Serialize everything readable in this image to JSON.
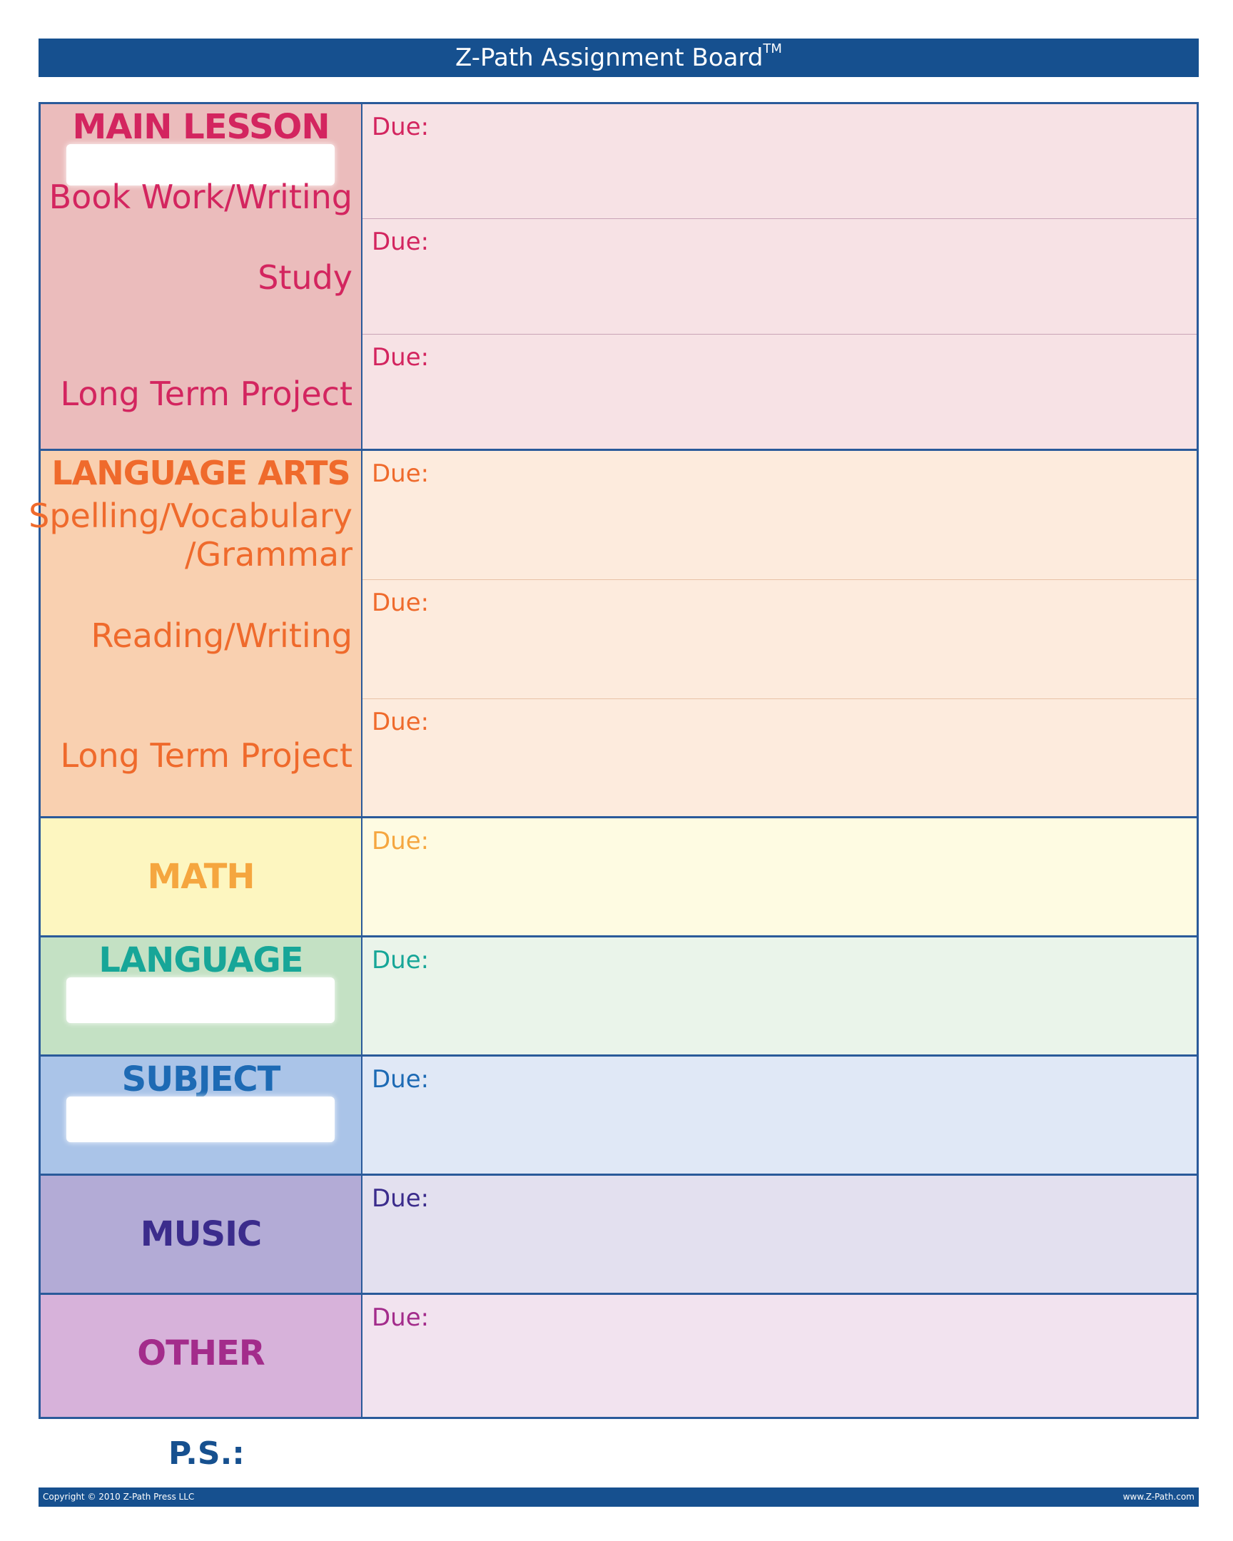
{
  "header": {
    "title": "Z-Path Assignment Board",
    "trademark": "TM"
  },
  "sections": {
    "main_lesson": {
      "heading": "MAIN LESSON",
      "items": [
        "Book Work/Writing",
        "Study",
        "Long Term Project"
      ],
      "due": [
        "Due:",
        "Due:",
        "Due:"
      ],
      "color": "#d3255f",
      "label_bg": "#ebbcbc",
      "due_bg": "#f7e2e5"
    },
    "language_arts": {
      "heading": "LANGUAGE ARTS",
      "items": [
        "Spelling/Vocabulary",
        "/Grammar",
        "Reading/Writing",
        "Long Term Project"
      ],
      "due": [
        "Due:",
        "Due:",
        "Due:"
      ],
      "color": "#ef6a2c",
      "label_bg": "#f9d0b0",
      "due_bg": "#fdebdd"
    },
    "math": {
      "heading": "MATH",
      "due": [
        "Due:"
      ],
      "color": "#f5a63f",
      "label_bg": "#fdf6c0",
      "due_bg": "#fefbe2"
    },
    "language": {
      "heading": "LANGUAGE",
      "due": [
        "Due:"
      ],
      "color": "#17a698",
      "label_bg": "#c4e1c4",
      "due_bg": "#eaf4ea"
    },
    "subject": {
      "heading": "SUBJECT",
      "due": [
        "Due:"
      ],
      "color": "#1d6ab4",
      "label_bg": "#aac4e8",
      "due_bg": "#e0e8f6"
    },
    "music": {
      "heading": "MUSIC",
      "due": [
        "Due:"
      ],
      "color": "#3b2c8c",
      "label_bg": "#b3abd6",
      "due_bg": "#e3e0ef"
    },
    "other": {
      "heading": "OTHER",
      "due": [
        "Due:"
      ],
      "color": "#a32c8b",
      "label_bg": "#d7b2da",
      "due_bg": "#f2e3ef"
    }
  },
  "ps_label": "P.S.:",
  "footer": {
    "copyright": "Copyright © 2010 Z-Path Press LLC",
    "url": "www.Z-Path.com"
  }
}
